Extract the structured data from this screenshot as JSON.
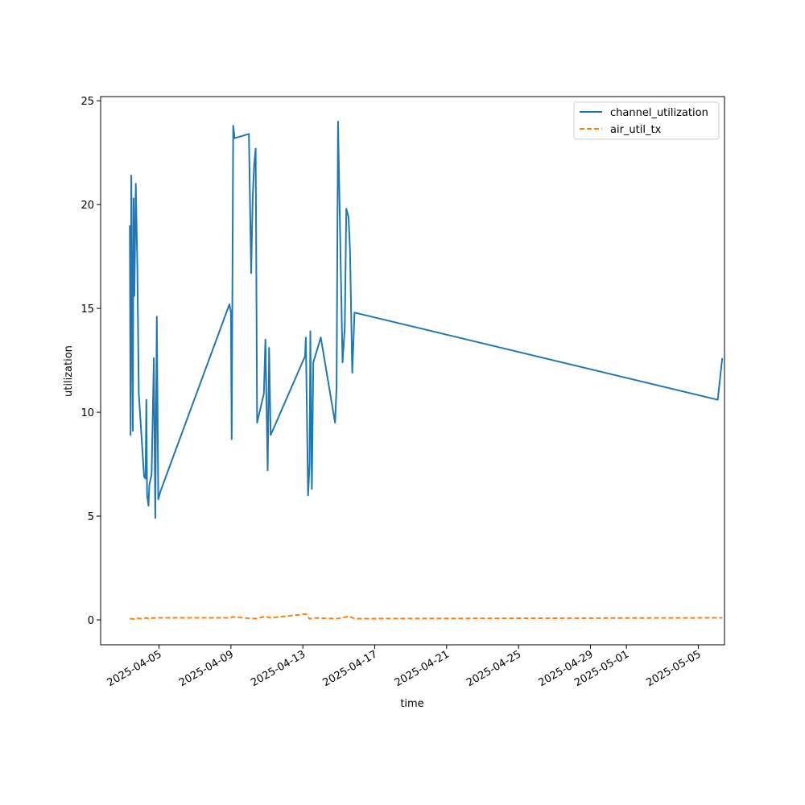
{
  "chart_data": {
    "type": "line",
    "title": "",
    "xlabel": "time",
    "ylabel": "utilization",
    "ylim": [
      -1.2,
      25.2
    ],
    "xlim": [
      "2025-04-01T18:00",
      "2025-05-06T11:00"
    ],
    "grid": false,
    "legend": "top-right",
    "x_ticks": [
      {
        "label": "2025-04-05",
        "at": "2025-04-05T00:00"
      },
      {
        "label": "2025-04-09",
        "at": "2025-04-09T00:00"
      },
      {
        "label": "2025-04-13",
        "at": "2025-04-13T00:00"
      },
      {
        "label": "2025-04-17",
        "at": "2025-04-17T00:00"
      },
      {
        "label": "2025-04-21",
        "at": "2025-04-21T00:00"
      },
      {
        "label": "2025-04-25",
        "at": "2025-04-25T00:00"
      },
      {
        "label": "2025-04-29",
        "at": "2025-04-29T00:00"
      },
      {
        "label": "2025-05-01",
        "at": "2025-05-01T00:00"
      },
      {
        "label": "2025-05-05",
        "at": "2025-05-05T00:00"
      }
    ],
    "y_ticks": [
      0,
      5,
      10,
      15,
      20,
      25
    ],
    "series": [
      {
        "name": "channel_utilization",
        "color": "#1f77b4",
        "style": "solid",
        "points": [
          [
            "2025-04-03T09:00",
            19.0
          ],
          [
            "2025-04-03T10:00",
            8.9
          ],
          [
            "2025-04-03T11:00",
            21.4
          ],
          [
            "2025-04-03T13:00",
            9.1
          ],
          [
            "2025-04-03T14:00",
            20.3
          ],
          [
            "2025-04-03T15:00",
            15.6
          ],
          [
            "2025-04-03T17:00",
            21.0
          ],
          [
            "2025-04-03T19:00",
            17.0
          ],
          [
            "2025-04-03T21:00",
            10.9
          ],
          [
            "2025-04-04T04:00",
            6.9
          ],
          [
            "2025-04-04T06:00",
            6.8
          ],
          [
            "2025-04-04T07:00",
            10.6
          ],
          [
            "2025-04-04T08:00",
            6.0
          ],
          [
            "2025-04-04T10:00",
            5.5
          ],
          [
            "2025-04-04T11:00",
            6.5
          ],
          [
            "2025-04-04T14:00",
            7.0
          ],
          [
            "2025-04-04T17:00",
            12.6
          ],
          [
            "2025-04-04T19:00",
            4.9
          ],
          [
            "2025-04-04T21:00",
            14.6
          ],
          [
            "2025-04-04T23:00",
            5.8
          ],
          [
            "2025-04-05T02:00",
            6.2
          ],
          [
            "2025-04-08T22:00",
            15.2
          ],
          [
            "2025-04-09T00:00",
            14.8
          ],
          [
            "2025-04-09T01:00",
            8.7
          ],
          [
            "2025-04-09T03:00",
            23.8
          ],
          [
            "2025-04-09T05:00",
            23.2
          ],
          [
            "2025-04-10T00:00",
            23.4
          ],
          [
            "2025-04-10T03:00",
            16.7
          ],
          [
            "2025-04-10T05:00",
            20.3
          ],
          [
            "2025-04-10T07:00",
            21.9
          ],
          [
            "2025-04-10T09:00",
            22.7
          ],
          [
            "2025-04-10T11:00",
            9.5
          ],
          [
            "2025-04-10T20:00",
            10.9
          ],
          [
            "2025-04-10T22:00",
            13.5
          ],
          [
            "2025-04-11T01:00",
            7.2
          ],
          [
            "2025-04-11T03:00",
            13.1
          ],
          [
            "2025-04-11T05:00",
            8.9
          ],
          [
            "2025-04-13T03:00",
            12.7
          ],
          [
            "2025-04-13T04:00",
            13.6
          ],
          [
            "2025-04-13T07:00",
            6.0
          ],
          [
            "2025-04-13T09:00",
            7.5
          ],
          [
            "2025-04-13T10:00",
            13.9
          ],
          [
            "2025-04-13T12:00",
            6.3
          ],
          [
            "2025-04-13T14:00",
            12.4
          ],
          [
            "2025-04-14T00:00",
            13.6
          ],
          [
            "2025-04-14T19:00",
            9.5
          ],
          [
            "2025-04-14T21:00",
            11.2
          ],
          [
            "2025-04-14T23:00",
            24.0
          ],
          [
            "2025-04-15T05:00",
            12.4
          ],
          [
            "2025-04-15T08:00",
            14.1
          ],
          [
            "2025-04-15T10:00",
            19.8
          ],
          [
            "2025-04-15T13:00",
            19.4
          ],
          [
            "2025-04-15T15:00",
            17.8
          ],
          [
            "2025-04-15T18:00",
            11.9
          ],
          [
            "2025-04-15T21:00",
            14.8
          ],
          [
            "2025-05-06T02:00",
            10.6
          ],
          [
            "2025-05-06T08:00",
            12.6
          ]
        ]
      },
      {
        "name": "air_util_tx",
        "color": "#ff7f0e",
        "style": "dashed",
        "points": [
          [
            "2025-04-03T09:00",
            0.06
          ],
          [
            "2025-04-03T14:00",
            0.04
          ],
          [
            "2025-04-03T19:00",
            0.08
          ],
          [
            "2025-04-04T02:00",
            0.05
          ],
          [
            "2025-04-04T07:00",
            0.1
          ],
          [
            "2025-04-04T11:00",
            0.05
          ],
          [
            "2025-04-04T15:00",
            0.09
          ],
          [
            "2025-04-05T02:00",
            0.1
          ],
          [
            "2025-04-08T22:00",
            0.1
          ],
          [
            "2025-04-09T03:00",
            0.14
          ],
          [
            "2025-04-10T00:00",
            0.08
          ],
          [
            "2025-04-10T10:00",
            0.06
          ],
          [
            "2025-04-10T22:00",
            0.17
          ],
          [
            "2025-04-11T05:00",
            0.1
          ],
          [
            "2025-04-13T04:00",
            0.28
          ],
          [
            "2025-04-13T09:00",
            0.05
          ],
          [
            "2025-04-13T14:00",
            0.1
          ],
          [
            "2025-04-14T00:00",
            0.08
          ],
          [
            "2025-04-14T21:00",
            0.06
          ],
          [
            "2025-04-15T05:00",
            0.1
          ],
          [
            "2025-04-15T13:00",
            0.18
          ],
          [
            "2025-04-15T21:00",
            0.06
          ],
          [
            "2025-05-06T02:00",
            0.1
          ],
          [
            "2025-05-06T08:00",
            0.1
          ]
        ]
      }
    ]
  }
}
